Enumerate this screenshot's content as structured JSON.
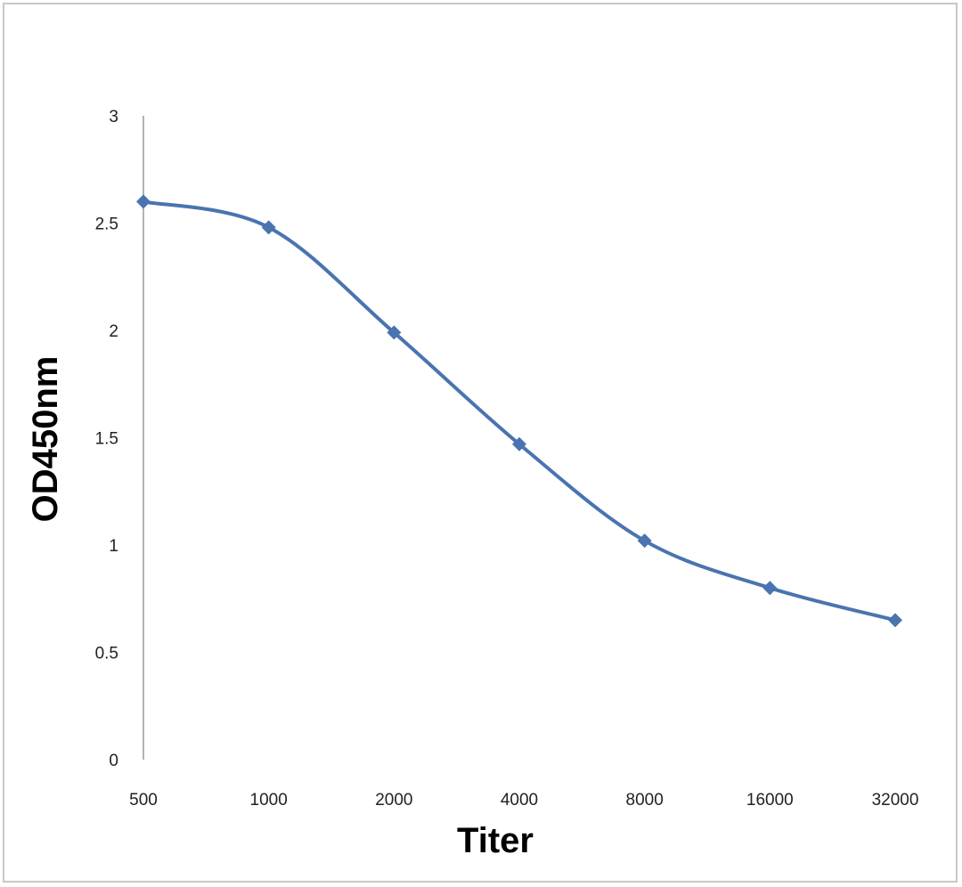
{
  "chart_data": {
    "type": "line",
    "title": "",
    "xlabel": "Titer",
    "ylabel": "OD450nm",
    "categories": [
      "500",
      "1000",
      "2000",
      "4000",
      "8000",
      "16000",
      "32000"
    ],
    "series": [
      {
        "values": [
          2.6,
          2.48,
          1.99,
          1.47,
          1.02,
          0.8,
          0.65
        ]
      }
    ],
    "ylim": [
      0,
      3
    ],
    "yticks": [
      "0",
      "0.5",
      "1",
      "1.5",
      "2",
      "2.5",
      "3"
    ],
    "grid": false,
    "legend": "none",
    "line_color": "#4a74b0",
    "smooth": true,
    "marker": "diamond"
  }
}
